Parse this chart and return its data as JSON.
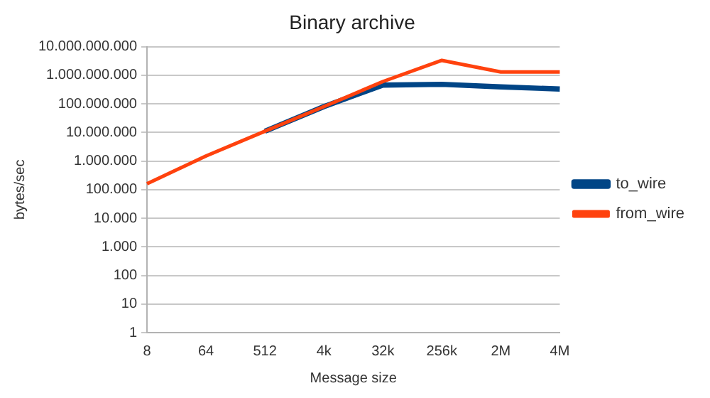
{
  "chart_data": {
    "type": "line",
    "title": "Binary archive",
    "xlabel": "Message size",
    "ylabel": "bytes/sec",
    "categories": [
      "8",
      "64",
      "512",
      "4k",
      "32k",
      "256k",
      "2M",
      "4M"
    ],
    "series": [
      {
        "name": "to_wire",
        "color": "#004586",
        "values": [
          null,
          null,
          11000000,
          80000000,
          450000000,
          480000000,
          390000000,
          330000000
        ]
      },
      {
        "name": "from_wire",
        "color": "#ff420e",
        "values": [
          160000,
          1500000,
          11000000,
          80000000,
          600000000,
          3300000000,
          1300000000,
          1300000000
        ]
      }
    ],
    "log": "y",
    "ylim": [
      1,
      10000000000
    ],
    "yticks": [
      {
        "value": 1,
        "label": "1"
      },
      {
        "value": 10,
        "label": "10"
      },
      {
        "value": 100,
        "label": "100"
      },
      {
        "value": 1000,
        "label": "1.000"
      },
      {
        "value": 10000,
        "label": "10.000"
      },
      {
        "value": 100000,
        "label": "100.000"
      },
      {
        "value": 1000000,
        "label": "1.000.000"
      },
      {
        "value": 10000000,
        "label": "10.000.000"
      },
      {
        "value": 100000000,
        "label": "100.000.000"
      },
      {
        "value": 1000000000,
        "label": "1.000.000.000"
      },
      {
        "value": 10000000000,
        "label": "10.000.000.000"
      }
    ],
    "grid": "y",
    "legend": "right",
    "marker": "none",
    "line_style": "solid"
  }
}
